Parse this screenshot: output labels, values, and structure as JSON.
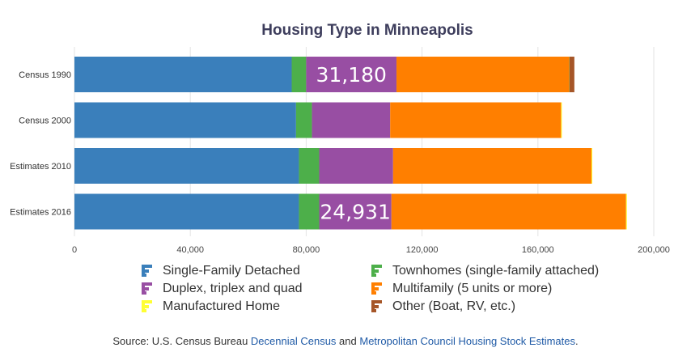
{
  "chart_data": {
    "type": "bar",
    "orientation": "horizontal",
    "stacked": true,
    "title": "Housing Type in Minneapolis",
    "categories": [
      "Census 1990",
      "Census 2000",
      "Estimates 2010",
      "Estimates 2016"
    ],
    "series": [
      {
        "name": "Single-Family Detached",
        "color": "#3a7fbb",
        "values": [
          75000,
          76500,
          77500,
          77500
        ]
      },
      {
        "name": "Townhomes (single-family attached)",
        "color": "#4daf4a",
        "values": [
          5000,
          5500,
          7000,
          7000
        ]
      },
      {
        "name": "Duplex, triplex and quad",
        "color": "#984ea3",
        "values": [
          31180,
          27000,
          25500,
          24931
        ]
      },
      {
        "name": "Multifamily (5 units or more)",
        "color": "#ff7f00",
        "values": [
          59500,
          59000,
          68500,
          81000
        ]
      },
      {
        "name": "Manufactured Home",
        "color": "#ffff33",
        "values": [
          100,
          200,
          100,
          100
        ]
      },
      {
        "name": "Other (Boat, RV, etc.)",
        "color": "#a65628",
        "values": [
          1800,
          0,
          0,
          0
        ]
      }
    ],
    "data_labels": [
      {
        "category": "Census 1990",
        "series": "Duplex, triplex and quad",
        "text": "31,180"
      },
      {
        "category": "Estimates 2016",
        "series": "Duplex, triplex and quad",
        "text": "24,931"
      }
    ],
    "xlim": [
      0,
      200000
    ],
    "xticks": [
      0,
      40000,
      80000,
      120000,
      160000,
      200000
    ],
    "xtick_labels": [
      "0",
      "40,000",
      "80,000",
      "120,000",
      "160,000",
      "200,000"
    ],
    "grid": true,
    "legend_position": "bottom"
  },
  "legend": {
    "items": [
      {
        "label": "Single-Family Detached",
        "color": "#3a7fbb",
        "icon": "legend-bar-icon"
      },
      {
        "label": "Townhomes (single-family attached)",
        "color": "#4daf4a",
        "icon": "legend-bar-icon"
      },
      {
        "label": "Duplex, triplex and quad",
        "color": "#984ea3",
        "icon": "legend-bar-icon"
      },
      {
        "label": "Multifamily (5 units or more)",
        "color": "#ff7f00",
        "icon": "legend-bar-icon"
      },
      {
        "label": "Manufactured Home",
        "color": "#ffff33",
        "icon": "legend-bar-icon"
      },
      {
        "label": "Other (Boat, RV, etc.)",
        "color": "#a65628",
        "icon": "legend-bar-icon"
      }
    ]
  },
  "source": {
    "prefix": "Source: U.S. Census Bureau ",
    "link1": "Decennial Census",
    "middle": " and ",
    "link2": "Metropolitan Council Housing Stock Estimates",
    "suffix": "."
  }
}
